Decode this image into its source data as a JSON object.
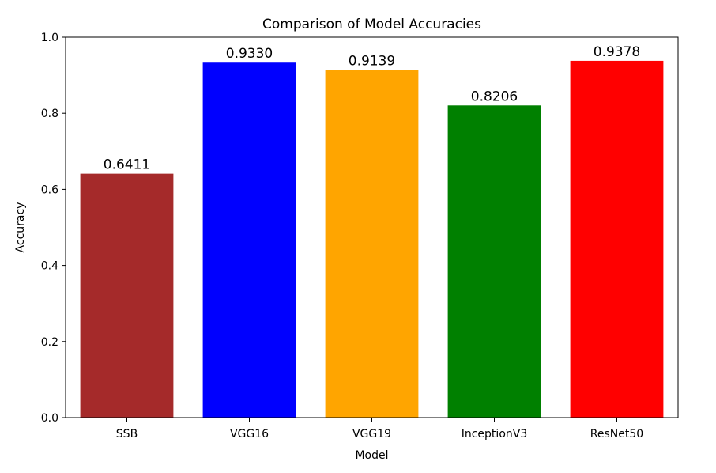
{
  "chart_data": {
    "type": "bar",
    "title": "Comparison of Model Accuracies",
    "xlabel": "Model",
    "ylabel": "Accuracy",
    "categories": [
      "SSB",
      "VGG16",
      "VGG19",
      "InceptionV3",
      "ResNet50"
    ],
    "values": [
      0.6411,
      0.933,
      0.9139,
      0.8206,
      0.9378
    ],
    "value_labels": [
      "0.6411",
      "0.9330",
      "0.9139",
      "0.8206",
      "0.9378"
    ],
    "colors": [
      "#a52a2a",
      "#0000ff",
      "#ffa500",
      "#008000",
      "#ff0000"
    ],
    "ylim": [
      0,
      1.0
    ],
    "yticks": [
      0.0,
      0.2,
      0.4,
      0.6,
      0.8,
      1.0
    ],
    "ytick_labels": [
      "0.0",
      "0.2",
      "0.4",
      "0.6",
      "0.8",
      "1.0"
    ],
    "grid": false,
    "legend": "none"
  }
}
